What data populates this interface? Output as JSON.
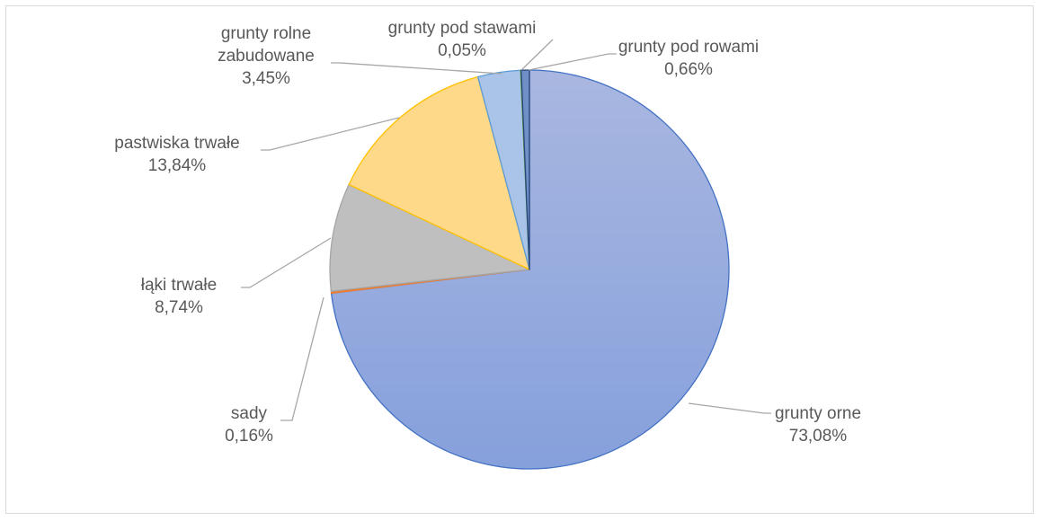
{
  "chart_data": {
    "type": "pie",
    "title": "",
    "slices": [
      {
        "label": "grunty orne",
        "label_lines": [
          "grunty orne"
        ],
        "value": 73.08,
        "value_label": "73,08%",
        "color": "#8ea3da",
        "stroke": "#4472c4"
      },
      {
        "label": "sady",
        "label_lines": [
          "sady"
        ],
        "value": 0.16,
        "value_label": "0,16%",
        "color": "#ed7d31",
        "stroke": "#ed7d31"
      },
      {
        "label": "łąki trwałe",
        "label_lines": [
          "łąki trwałe"
        ],
        "value": 8.74,
        "value_label": "8,74%",
        "color": "#bfbfbf",
        "stroke": "#a5a5a5"
      },
      {
        "label": "pastwiska trwałe",
        "label_lines": [
          "pastwiska trwałe"
        ],
        "value": 13.84,
        "value_label": "13,84%",
        "color": "#ffd98a",
        "stroke": "#ffc000"
      },
      {
        "label": "grunty rolne zabudowane",
        "label_lines": [
          "grunty rolne",
          "zabudowane"
        ],
        "value": 3.45,
        "value_label": "3,45%",
        "color": "#a9c4e8",
        "stroke": "#5b9bd5"
      },
      {
        "label": "grunty pod stawami",
        "label_lines": [
          "grunty pod stawami"
        ],
        "value": 0.05,
        "value_label": "0,05%",
        "color": "#70ad47",
        "stroke": "#70ad47"
      },
      {
        "label": "grunty pod rowami",
        "label_lines": [
          "grunty pod rowami"
        ],
        "value": 0.66,
        "value_label": "0,66%",
        "color": "#6f8fc6",
        "stroke": "#264478"
      }
    ]
  }
}
